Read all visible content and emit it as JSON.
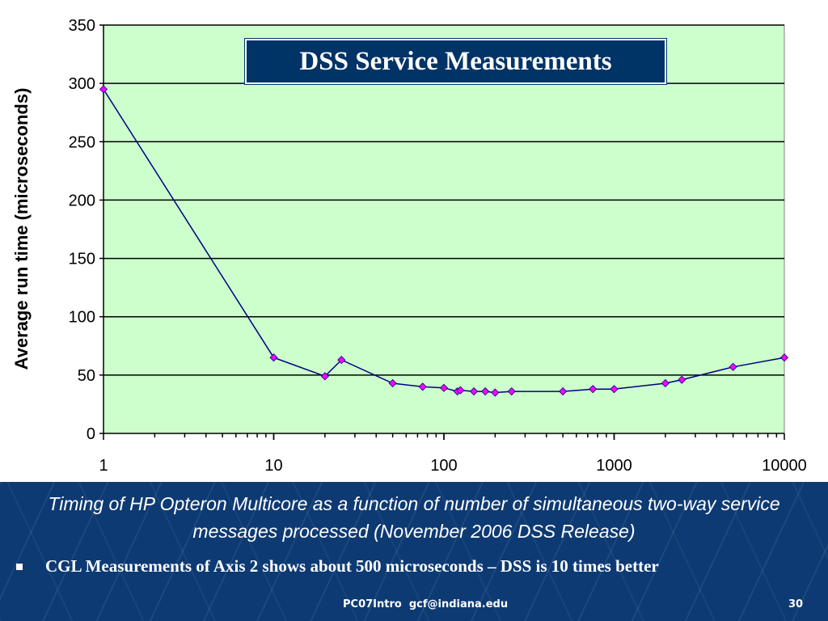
{
  "chart_data": {
    "type": "line",
    "title": "DSS Service Measurements",
    "ylabel": "Average run time (microseconds)",
    "xlabel": "",
    "x_scale": "log",
    "xlim": [
      1,
      10000
    ],
    "ylim": [
      0,
      350
    ],
    "grid": true,
    "x_ticks": [
      1,
      10,
      100,
      1000,
      10000
    ],
    "x_tick_labels": [
      "1",
      "10",
      "100",
      "1000",
      "10000"
    ],
    "y_ticks": [
      0,
      50,
      100,
      150,
      200,
      250,
      300,
      350
    ],
    "y_tick_labels": [
      "0",
      "50",
      "100",
      "150",
      "200",
      "250",
      "300",
      "350"
    ],
    "background_color": "#ccffcc",
    "line_color": "#000080",
    "marker_color": "#ff00ff",
    "series": [
      {
        "x": [
          1,
          10,
          20,
          25,
          50,
          75,
          100,
          120,
          125,
          150,
          175,
          200,
          250,
          500,
          750,
          1000,
          2000,
          2500,
          5000,
          10000
        ],
        "y": [
          295,
          65,
          49,
          63,
          43,
          40,
          39,
          36,
          37,
          36,
          36,
          35,
          36,
          36,
          38,
          38,
          43,
          46,
          57,
          65
        ]
      }
    ]
  },
  "caption": "Timing of HP Opteron Multicore as a function of number of simultaneous two-way service messages processed (November 2006 DSS Release)",
  "bullet": "CGL Measurements of Axis 2 shows about 500 microseconds – DSS is 10 times better",
  "footer_text": "PC07Intro  gcf@indiana.edu",
  "page_number": "30"
}
